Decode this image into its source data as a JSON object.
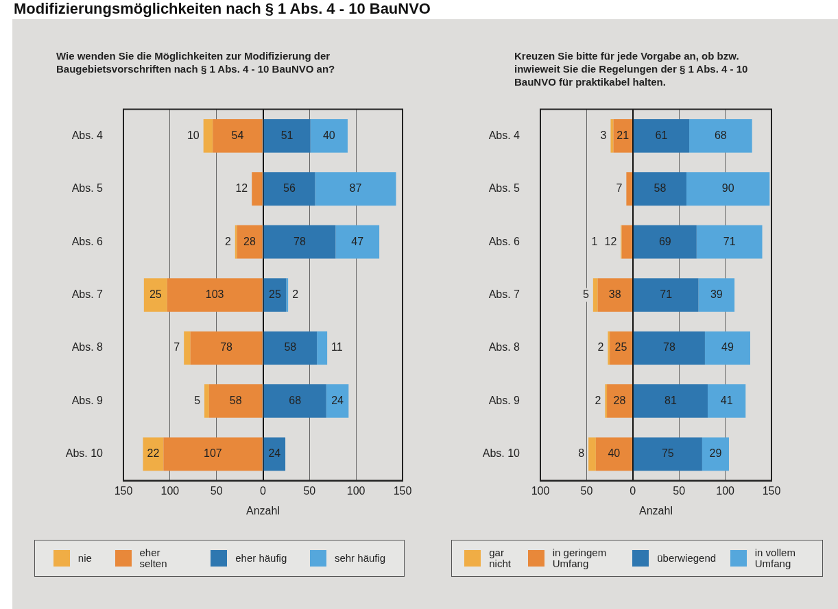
{
  "chart_data": [
    {
      "type": "bar",
      "orientation": "horizontal",
      "data_labels": true,
      "annotations": [
        "Modifizierungsmöglichkeiten nach § 1 Abs. 4 - 10 BauNVO"
      ],
      "title": "Wie wenden Sie die Möglichkeiten zur Modifizierung der Baugebietsvorschriften nach § 1 Abs. 4 - 10 BauNVO an?",
      "xlabel": "Anzahl",
      "categories": [
        "Abs. 4",
        "Abs. 5",
        "Abs. 6",
        "Abs. 7",
        "Abs. 8",
        "Abs. 9",
        "Abs. 10"
      ],
      "series": [
        {
          "name": "eher selten",
          "color": "#e8883a",
          "values": [
            54,
            12,
            28,
            103,
            78,
            58,
            107
          ],
          "base": [
            -54,
            -12,
            -28,
            -103,
            -78,
            -58,
            -107
          ]
        },
        {
          "name": "nie",
          "color": "#f0ad45",
          "values": [
            10,
            null,
            2,
            25,
            7,
            5,
            22
          ],
          "base": [
            -64,
            null,
            -30,
            -128,
            -85,
            -63,
            -129
          ]
        },
        {
          "name": "eher häufig",
          "color": "#2e77b0",
          "values": [
            51,
            56,
            78,
            25,
            58,
            68,
            24
          ],
          "base": [
            0,
            0,
            0,
            0,
            0,
            0,
            0
          ]
        },
        {
          "name": "sehr häufig",
          "color": "#55a7dc",
          "values": [
            40,
            87,
            47,
            2,
            11,
            24,
            null
          ],
          "base": [
            51,
            56,
            78,
            25,
            58,
            68,
            null
          ]
        }
      ],
      "xlim": [
        -150,
        150
      ],
      "xticks": [
        {
          "value": -150,
          "label": "150"
        },
        {
          "value": -100,
          "label": "100"
        },
        {
          "value": -50,
          "label": "50"
        },
        0,
        50,
        100,
        150
      ],
      "grid": "x",
      "legend": "bottom"
    },
    {
      "type": "bar",
      "orientation": "horizontal",
      "data_labels": true,
      "title": "Kreuzen Sie bitte für jede Vorgabe an, ob bzw. inwieweit Sie die Regelungen der § 1 Abs. 4 - 10 BauNVO für praktikabel halten.",
      "xlabel": "Anzahl",
      "categories": [
        "Abs. 4",
        "Abs. 5",
        "Abs. 6",
        "Abs. 7",
        "Abs. 8",
        "Abs. 9",
        "Abs. 10"
      ],
      "series": [
        {
          "name": "in geringem Umfang",
          "color": "#e8883a",
          "values": [
            21,
            7,
            12,
            38,
            25,
            28,
            40
          ],
          "base": [
            -21,
            -7,
            -12,
            -38,
            -25,
            -28,
            -40
          ]
        },
        {
          "name": "gar nicht",
          "color": "#f0ad45",
          "values": [
            3,
            null,
            1,
            5,
            2,
            2,
            8
          ],
          "base": [
            -24,
            null,
            -13,
            -43,
            -27,
            -30,
            -48
          ]
        },
        {
          "name": "überwiegend",
          "color": "#2e77b0",
          "values": [
            61,
            58,
            69,
            71,
            78,
            81,
            75
          ],
          "base": [
            0,
            0,
            0,
            0,
            0,
            0,
            0
          ]
        },
        {
          "name": "in vollem Umfang",
          "color": "#55a7dc",
          "values": [
            68,
            90,
            71,
            39,
            49,
            41,
            29
          ],
          "base": [
            61,
            58,
            69,
            71,
            78,
            81,
            75
          ]
        }
      ],
      "xlim": [
        -100,
        150
      ],
      "xticks": [
        {
          "value": -100,
          "label": "100"
        },
        {
          "value": -50,
          "label": "50"
        },
        0,
        50,
        100,
        150
      ],
      "grid": "x",
      "legend": "bottom"
    }
  ]
}
